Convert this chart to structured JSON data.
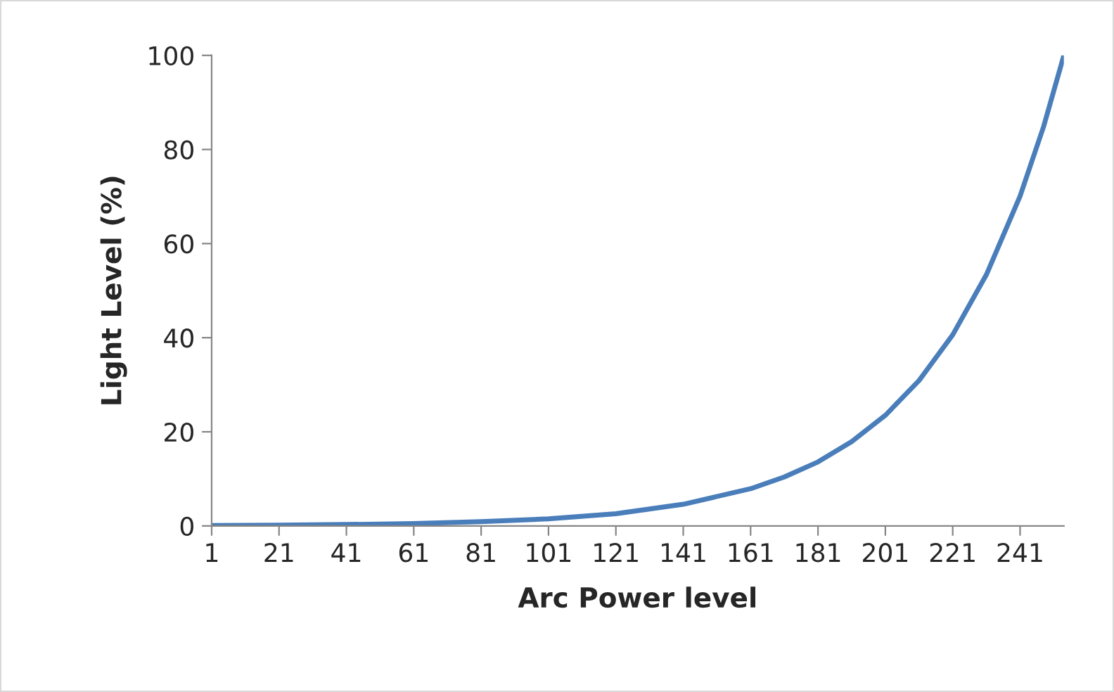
{
  "chart_data": {
    "type": "line",
    "xlabel": "Arc Power level",
    "ylabel": "Light Level (%)",
    "x": [
      1,
      21,
      41,
      61,
      81,
      101,
      121,
      141,
      161,
      171,
      181,
      191,
      201,
      211,
      221,
      231,
      241,
      248,
      254
    ],
    "series": [
      {
        "color": "#4a7ebb",
        "values": [
          0.1,
          0.17,
          0.3,
          0.5,
          0.9,
          1.5,
          2.6,
          4.6,
          7.9,
          10.4,
          13.6,
          17.9,
          23.5,
          30.9,
          40.6,
          53.4,
          70.1,
          84.9,
          100
        ]
      }
    ],
    "xlim": [
      1,
      254
    ],
    "xticks": [
      1,
      21,
      41,
      61,
      81,
      101,
      121,
      141,
      161,
      181,
      201,
      221,
      241
    ],
    "ylim": [
      0,
      100
    ],
    "yticks": [
      0,
      20,
      40,
      60,
      80,
      100
    ],
    "grid": false,
    "legend": false,
    "marker": "none",
    "line_style": "solid"
  }
}
